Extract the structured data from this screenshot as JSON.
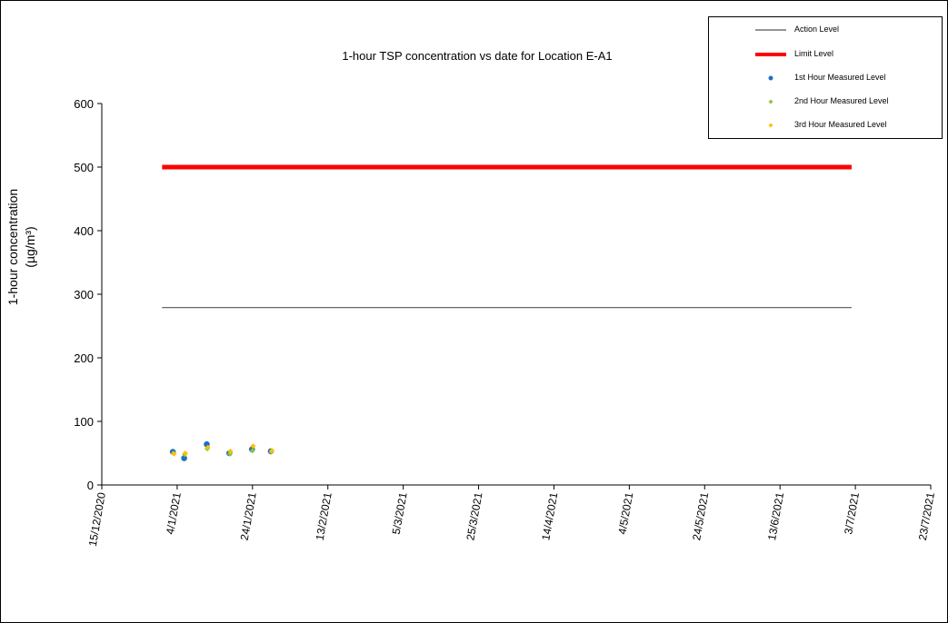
{
  "chart_data": {
    "type": "scatter",
    "title": "1-hour TSP concentration vs date for Location E-A1",
    "ylabel_line1": "1-hour concentration",
    "ylabel_line2": "(µg/m³)",
    "xlabel": "",
    "ylim": [
      0,
      600
    ],
    "y_ticks": [
      0,
      100,
      200,
      300,
      400,
      500,
      600
    ],
    "xlim": [
      "15/12/2020",
      "23/7/2021"
    ],
    "x_ticks": [
      "15/12/2020",
      "4/1/2021",
      "24/1/2021",
      "13/2/2021",
      "5/3/2021",
      "25/3/2021",
      "14/4/2021",
      "4/5/2021",
      "24/5/2021",
      "13/6/2021",
      "3/7/2021",
      "23/7/2021"
    ],
    "grid": false,
    "legend_position": "top-right",
    "reference_lines": [
      {
        "name": "Action Level",
        "value": 279,
        "x_start": "31/12/2020",
        "x_end": "2/7/2021",
        "color": "#555555"
      },
      {
        "name": "Limit Level",
        "value": 500,
        "x_start": "31/12/2020",
        "x_end": "2/7/2021",
        "color": "#ff0000"
      }
    ],
    "series": [
      {
        "name": "1st Hour Measured Level",
        "color": "#1f6fc0",
        "marker": "circle",
        "points": [
          [
            "3/1/2021",
            52
          ],
          [
            "6/1/2021",
            42
          ],
          [
            "12/1/2021",
            64
          ],
          [
            "18/1/2021",
            50
          ],
          [
            "24/1/2021",
            56
          ],
          [
            "29/1/2021",
            53
          ]
        ]
      },
      {
        "name": "2nd Hour Measured Level",
        "color": "#8dc63f",
        "marker": "diamond",
        "points": [
          [
            "3/1/2021",
            50
          ],
          [
            "6/1/2021",
            48
          ],
          [
            "12/1/2021",
            57
          ],
          [
            "18/1/2021",
            49
          ],
          [
            "24/1/2021",
            54
          ],
          [
            "29/1/2021",
            52
          ]
        ]
      },
      {
        "name": "3rd Hour Measured Level",
        "color": "#ffc000",
        "marker": "diamond",
        "points": [
          [
            "3/1/2021",
            49
          ],
          [
            "6/1/2021",
            50
          ],
          [
            "12/1/2021",
            59
          ],
          [
            "18/1/2021",
            53
          ],
          [
            "24/1/2021",
            61
          ],
          [
            "29/1/2021",
            54
          ]
        ]
      }
    ]
  },
  "legend": {
    "items": [
      {
        "label": "Action Level",
        "kind": "line-thin",
        "color": "#555555"
      },
      {
        "label": "Limit Level",
        "kind": "line-thick",
        "color": "#ff0000"
      },
      {
        "label": "1st Hour Measured Level",
        "kind": "circle",
        "color": "#1f6fc0"
      },
      {
        "label": "2nd Hour Measured Level",
        "kind": "diamond",
        "color": "#8dc63f"
      },
      {
        "label": "3rd Hour Measured Level",
        "kind": "diamond",
        "color": "#ffc000"
      }
    ]
  }
}
